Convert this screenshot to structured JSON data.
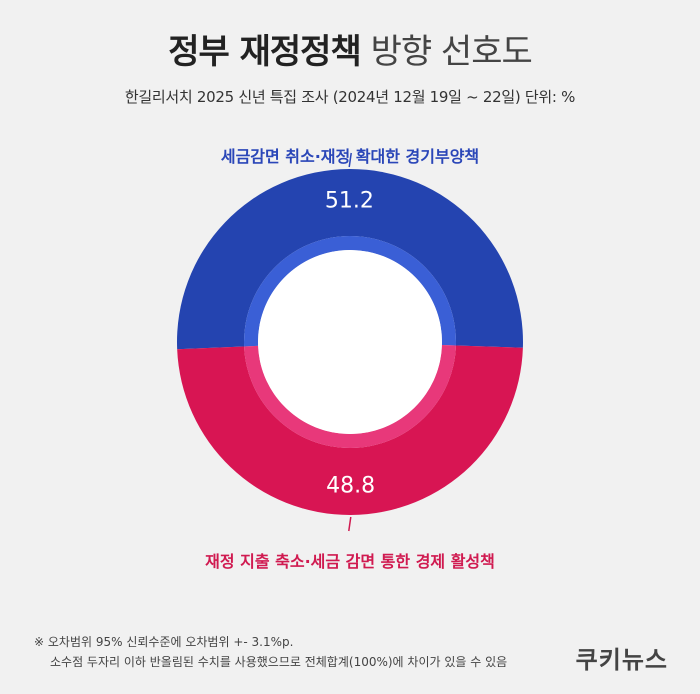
{
  "header": {
    "title_bold": "정부 재정정책",
    "title_light": "방향 선호도",
    "subtitle": "한길리서치 2025 신년 특집 조사 (2024년 12월 19일 ~ 22일) 단위: %"
  },
  "chart_data": {
    "type": "pie",
    "donut": true,
    "unit": "%",
    "slices": [
      {
        "label": "세금감면 취소·재정 확대한 경기부양책",
        "value": 51.2,
        "color": "#2444b0",
        "inner_color": "#3a5fd6",
        "label_color": "#2a46b8"
      },
      {
        "label": "재정 지출 축소·세금 감면 통한 경제 활성책",
        "value": 48.8,
        "color": "#d81553",
        "inner_color": "#e8387a",
        "label_color": "#d01a50"
      }
    ]
  },
  "footer": {
    "note_line1": "※ 오차범위 95% 신뢰수준에 오차범위 +- 3.1%p.",
    "note_line2": "소수점 두자리 이하 반올림된 수치를 사용했으므로 전체합계(100%)에 차이가 있을 수 있음",
    "brand": "쿠키뉴스"
  }
}
